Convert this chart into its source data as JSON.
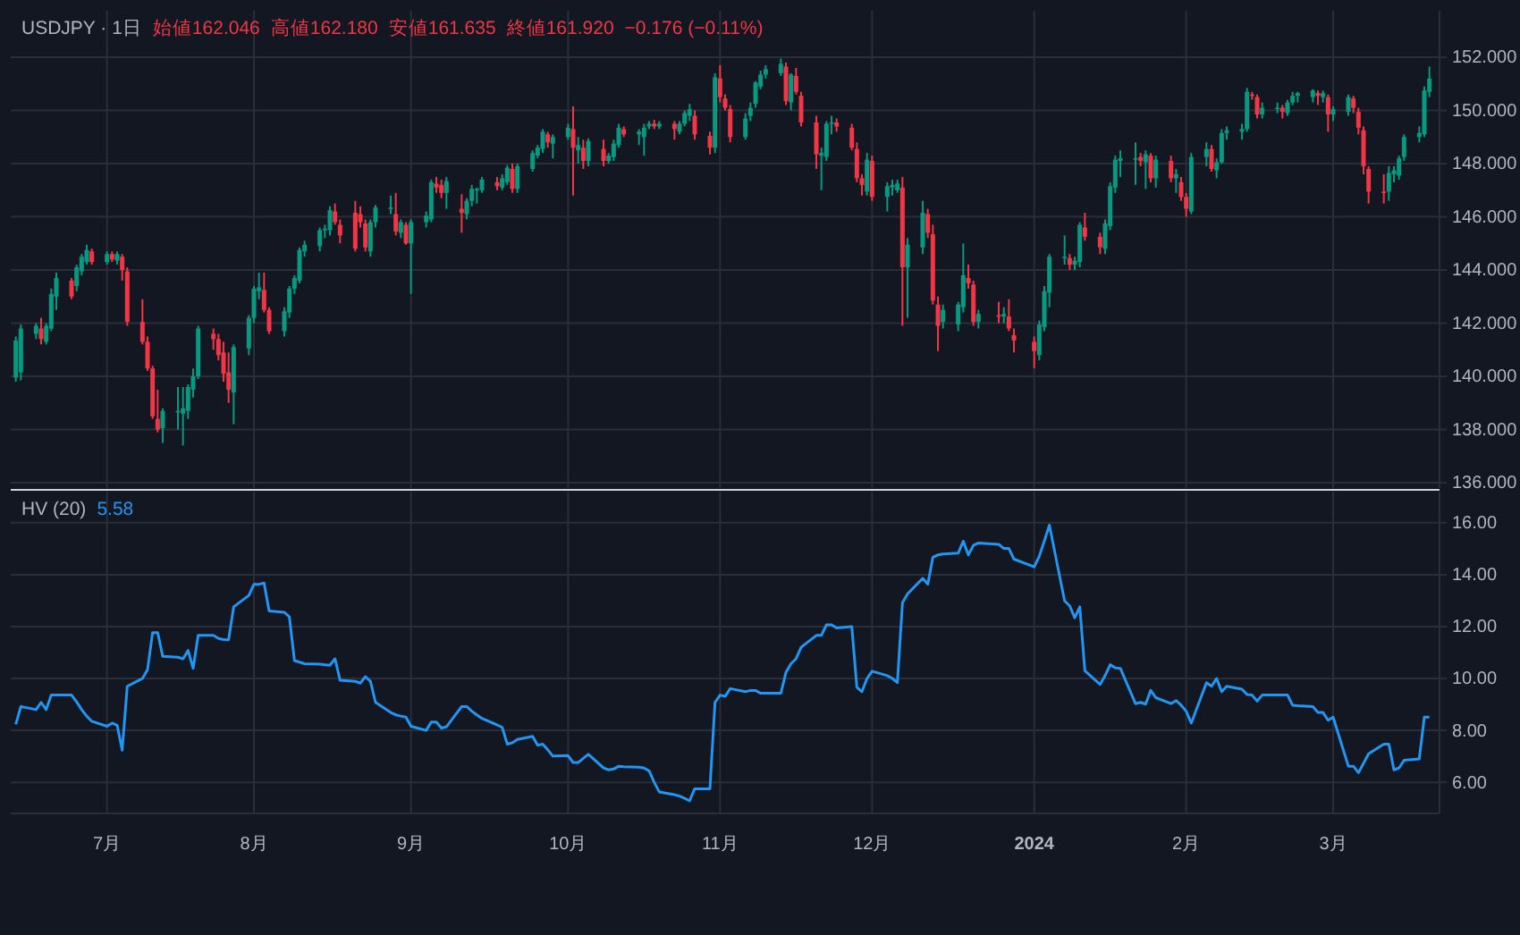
{
  "chart_data": [
    {
      "type": "candlestick",
      "title": "USDJPY · 1日",
      "annotations": [
        "始値162.046",
        "高値162.180",
        "安値161.635",
        "終値161.920",
        "−0.176 (−0.11%)"
      ],
      "x": [
        "2023-06-15",
        "2023-06-16",
        "2023-06-19",
        "2023-06-20",
        "2023-06-21",
        "2023-06-22",
        "2023-06-23",
        "2023-06-26",
        "2023-06-27",
        "2023-06-28",
        "2023-06-29",
        "2023-06-30",
        "2023-07-03",
        "2023-07-04",
        "2023-07-05",
        "2023-07-06",
        "2023-07-07",
        "2023-07-10",
        "2023-07-11",
        "2023-07-12",
        "2023-07-13",
        "2023-07-14",
        "2023-07-17",
        "2023-07-18",
        "2023-07-19",
        "2023-07-20",
        "2023-07-21",
        "2023-07-24",
        "2023-07-25",
        "2023-07-26",
        "2023-07-27",
        "2023-07-28",
        "2023-07-31",
        "2023-08-01",
        "2023-08-02",
        "2023-08-03",
        "2023-08-04",
        "2023-08-07",
        "2023-08-08",
        "2023-08-09",
        "2023-08-10",
        "2023-08-11",
        "2023-08-14",
        "2023-08-15",
        "2023-08-16",
        "2023-08-17",
        "2023-08-18",
        "2023-08-21",
        "2023-08-22",
        "2023-08-23",
        "2023-08-24",
        "2023-08-25",
        "2023-08-28",
        "2023-08-29",
        "2023-08-30",
        "2023-08-31",
        "2023-09-01",
        "2023-09-04",
        "2023-09-05",
        "2023-09-06",
        "2023-09-07",
        "2023-09-08",
        "2023-09-11",
        "2023-09-12",
        "2023-09-13",
        "2023-09-14",
        "2023-09-15",
        "2023-09-18",
        "2023-09-19",
        "2023-09-20",
        "2023-09-21",
        "2023-09-22",
        "2023-09-25",
        "2023-09-26",
        "2023-09-27",
        "2023-09-28",
        "2023-09-29",
        "2023-10-02",
        "2023-10-03",
        "2023-10-04",
        "2023-10-05",
        "2023-10-06",
        "2023-10-09",
        "2023-10-10",
        "2023-10-11",
        "2023-10-12",
        "2023-10-13",
        "2023-10-16",
        "2023-10-17",
        "2023-10-18",
        "2023-10-19",
        "2023-10-20",
        "2023-10-23",
        "2023-10-24",
        "2023-10-25",
        "2023-10-26",
        "2023-10-27",
        "2023-10-30",
        "2023-10-31",
        "2023-11-01",
        "2023-11-02",
        "2023-11-03",
        "2023-11-06",
        "2023-11-07",
        "2023-11-08",
        "2023-11-09",
        "2023-11-10",
        "2023-11-13",
        "2023-11-14",
        "2023-11-15",
        "2023-11-16",
        "2023-11-17",
        "2023-11-20",
        "2023-11-21",
        "2023-11-22",
        "2023-11-23",
        "2023-11-24",
        "2023-11-27",
        "2023-11-28",
        "2023-11-29",
        "2023-11-30",
        "2023-12-01",
        "2023-12-04",
        "2023-12-05",
        "2023-12-06",
        "2023-12-07",
        "2023-12-08",
        "2023-12-11",
        "2023-12-12",
        "2023-12-13",
        "2023-12-14",
        "2023-12-15",
        "2023-12-18",
        "2023-12-19",
        "2023-12-20",
        "2023-12-21",
        "2023-12-22",
        "2023-12-26",
        "2023-12-27",
        "2023-12-28",
        "2023-12-29",
        "2024-01-02",
        "2024-01-03",
        "2024-01-04",
        "2024-01-05",
        "2024-01-08",
        "2024-01-09",
        "2024-01-10",
        "2024-01-11",
        "2024-01-12",
        "2024-01-15",
        "2024-01-16",
        "2024-01-17",
        "2024-01-18",
        "2024-01-19",
        "2024-01-22",
        "2024-01-23",
        "2024-01-24",
        "2024-01-25",
        "2024-01-26",
        "2024-01-29",
        "2024-01-30",
        "2024-01-31",
        "2024-02-01",
        "2024-02-02",
        "2024-02-05",
        "2024-02-06",
        "2024-02-07",
        "2024-02-08",
        "2024-02-09",
        "2024-02-12",
        "2024-02-13",
        "2024-02-14",
        "2024-02-15",
        "2024-02-16",
        "2024-02-19",
        "2024-02-20",
        "2024-02-21",
        "2024-02-22",
        "2024-02-23",
        "2024-02-26",
        "2024-02-27",
        "2024-02-28",
        "2024-02-29",
        "2024-03-01",
        "2024-03-04",
        "2024-03-05",
        "2024-03-06",
        "2024-03-07",
        "2024-03-08",
        "2024-03-11",
        "2024-03-12",
        "2024-03-13",
        "2024-03-14",
        "2024-03-15",
        "2024-03-18",
        "2024-03-19",
        "2024-03-20"
      ],
      "ohlc": [
        [
          139.95,
          141.5,
          139.8,
          141.35
        ],
        [
          140.15,
          141.95,
          139.85,
          141.8
        ],
        [
          141.6,
          142.0,
          141.4,
          141.9
        ],
        [
          141.8,
          142.2,
          141.2,
          141.4
        ],
        [
          141.3,
          142.0,
          141.2,
          141.9
        ],
        [
          141.8,
          143.3,
          141.7,
          143.1
        ],
        [
          143.0,
          143.9,
          142.5,
          143.7
        ],
        [
          143.6,
          143.7,
          142.9,
          143.0
        ],
        [
          143.4,
          144.2,
          143.2,
          144.1
        ],
        [
          143.95,
          144.6,
          143.8,
          144.5
        ],
        [
          144.3,
          144.95,
          144.2,
          144.75
        ],
        [
          144.7,
          144.8,
          144.2,
          144.3
        ],
        [
          144.3,
          144.7,
          144.2,
          144.6
        ],
        [
          144.6,
          144.7,
          144.3,
          144.4
        ],
        [
          144.35,
          144.7,
          144.2,
          144.6
        ],
        [
          144.5,
          144.6,
          143.6,
          144.0
        ],
        [
          143.95,
          144.1,
          141.9,
          142.05
        ],
        [
          142.05,
          142.9,
          141.2,
          141.3
        ],
        [
          141.3,
          141.5,
          140.2,
          140.3
        ],
        [
          140.3,
          140.4,
          138.4,
          138.5
        ],
        [
          138.4,
          139.5,
          137.9,
          138.0
        ],
        [
          138.05,
          138.8,
          137.5,
          138.7
        ],
        [
          138.65,
          139.6,
          138.0,
          138.7
        ],
        [
          138.6,
          139.6,
          137.4,
          138.8
        ],
        [
          138.7,
          139.7,
          138.4,
          139.6
        ],
        [
          139.5,
          140.3,
          139.2,
          140.0
        ],
        [
          140.0,
          141.9,
          139.9,
          141.8
        ],
        [
          141.6,
          141.8,
          141.0,
          141.4
        ],
        [
          141.4,
          141.6,
          140.6,
          140.8
        ],
        [
          140.9,
          141.3,
          139.8,
          140.1
        ],
        [
          140.15,
          140.9,
          139.0,
          139.5
        ],
        [
          139.4,
          141.2,
          138.2,
          141.1
        ],
        [
          141.05,
          142.3,
          140.8,
          142.2
        ],
        [
          142.2,
          143.4,
          142.0,
          143.3
        ],
        [
          143.2,
          143.9,
          142.9,
          143.35
        ],
        [
          143.25,
          143.9,
          142.4,
          142.5
        ],
        [
          142.5,
          142.6,
          141.6,
          141.7
        ],
        [
          141.7,
          142.6,
          141.5,
          142.45
        ],
        [
          142.4,
          143.4,
          142.2,
          143.3
        ],
        [
          143.3,
          143.8,
          143.1,
          143.7
        ],
        [
          143.6,
          144.85,
          143.5,
          144.75
        ],
        [
          144.7,
          145.1,
          144.5,
          144.95
        ],
        [
          144.9,
          145.6,
          144.7,
          145.5
        ],
        [
          145.5,
          145.7,
          145.2,
          145.55
        ],
        [
          145.5,
          146.4,
          145.3,
          146.25
        ],
        [
          146.2,
          146.5,
          145.7,
          145.8
        ],
        [
          145.7,
          145.9,
          145.0,
          145.3
        ],
        [
          146.15,
          146.6,
          144.7,
          144.8
        ],
        [
          146.1,
          146.4,
          145.6,
          145.8
        ],
        [
          145.75,
          145.9,
          144.7,
          144.85
        ],
        [
          144.7,
          145.9,
          144.5,
          145.8
        ],
        [
          145.8,
          146.45,
          145.6,
          146.35
        ],
        [
          146.3,
          146.8,
          146.1,
          146.35
        ],
        [
          146.1,
          146.9,
          145.3,
          145.45
        ],
        [
          145.4,
          145.9,
          145.2,
          145.8
        ],
        [
          145.7,
          145.8,
          144.95,
          145.0
        ],
        [
          145.0,
          145.9,
          143.1,
          145.8
        ],
        [
          145.8,
          146.2,
          145.6,
          146.05
        ],
        [
          145.9,
          147.4,
          145.8,
          147.3
        ],
        [
          147.25,
          147.5,
          146.9,
          147.1
        ],
        [
          147.2,
          147.4,
          146.7,
          146.9
        ],
        [
          146.9,
          147.5,
          146.3,
          147.35
        ],
        [
          146.3,
          146.85,
          145.4,
          146.15
        ],
        [
          146.1,
          146.7,
          145.9,
          146.6
        ],
        [
          146.6,
          147.2,
          146.4,
          147.05
        ],
        [
          147.0,
          147.1,
          146.5,
          147.05
        ],
        [
          147.0,
          147.5,
          146.9,
          147.4
        ],
        [
          147.3,
          147.5,
          147.0,
          147.15
        ],
        [
          147.1,
          147.6,
          147.0,
          147.45
        ],
        [
          147.3,
          147.95,
          147.2,
          147.85
        ],
        [
          147.8,
          148.0,
          146.9,
          147.05
        ],
        [
          147.05,
          148.0,
          146.9,
          147.9
        ],
        [
          147.8,
          148.5,
          147.7,
          148.4
        ],
        [
          148.3,
          148.7,
          148.2,
          148.6
        ],
        [
          148.55,
          149.3,
          148.4,
          149.2
        ],
        [
          149.1,
          149.2,
          148.6,
          148.8
        ],
        [
          148.75,
          149.1,
          148.2,
          149.0
        ],
        [
          149.0,
          149.5,
          148.9,
          149.35
        ],
        [
          149.3,
          150.15,
          146.8,
          148.6
        ],
        [
          148.5,
          149.0,
          148.0,
          148.7
        ],
        [
          148.6,
          148.9,
          147.8,
          148.1
        ],
        [
          148.1,
          148.95,
          147.9,
          148.85
        ],
        [
          148.55,
          148.9,
          147.9,
          148.1
        ],
        [
          148.1,
          148.4,
          148.0,
          148.3
        ],
        [
          148.25,
          148.9,
          148.1,
          148.75
        ],
        [
          148.7,
          149.5,
          148.6,
          149.35
        ],
        [
          149.3,
          149.4,
          149.0,
          149.1
        ],
        [
          149.1,
          149.3,
          148.7,
          149.2
        ],
        [
          149.0,
          149.5,
          148.3,
          149.35
        ],
        [
          149.4,
          149.6,
          149.3,
          149.5
        ],
        [
          149.5,
          149.65,
          149.3,
          149.4
        ],
        [
          149.4,
          149.6,
          149.3,
          149.5
        ],
        [
          149.5,
          149.6,
          148.9,
          149.3
        ],
        [
          149.2,
          149.6,
          149.1,
          149.5
        ],
        [
          149.5,
          150.0,
          149.4,
          149.9
        ],
        [
          149.8,
          150.25,
          149.6,
          150.05
        ],
        [
          149.8,
          150.0,
          148.9,
          149.1
        ],
        [
          149.05,
          149.2,
          148.35,
          148.6
        ],
        [
          148.6,
          151.4,
          148.4,
          151.25
        ],
        [
          151.2,
          151.7,
          150.3,
          150.5
        ],
        [
          150.45,
          150.6,
          150.0,
          150.1
        ],
        [
          150.05,
          150.2,
          148.8,
          149.0
        ],
        [
          149.0,
          149.9,
          148.9,
          149.7
        ],
        [
          149.8,
          150.3,
          149.6,
          150.1
        ],
        [
          150.25,
          151.1,
          150.1,
          151.05
        ],
        [
          150.9,
          151.5,
          150.8,
          151.35
        ],
        [
          151.35,
          151.7,
          151.2,
          151.55
        ],
        [
          151.4,
          151.95,
          151.3,
          151.75
        ],
        [
          151.65,
          151.8,
          150.2,
          150.35
        ],
        [
          150.3,
          151.4,
          150.0,
          151.35
        ],
        [
          151.3,
          151.6,
          150.6,
          150.7
        ],
        [
          150.55,
          150.7,
          149.4,
          149.55
        ],
        [
          149.55,
          149.8,
          147.8,
          148.35
        ],
        [
          148.3,
          148.6,
          147.0,
          148.4
        ],
        [
          148.25,
          149.6,
          148.1,
          149.5
        ],
        [
          149.5,
          149.8,
          149.1,
          149.55
        ],
        [
          149.55,
          149.7,
          149.2,
          149.4
        ],
        [
          149.35,
          149.5,
          148.5,
          148.6
        ],
        [
          148.55,
          148.8,
          147.3,
          147.45
        ],
        [
          147.45,
          147.6,
          146.8,
          147.2
        ],
        [
          146.95,
          148.4,
          146.8,
          148.15
        ],
        [
          148.1,
          148.3,
          146.6,
          146.75
        ],
        [
          146.75,
          147.3,
          146.2,
          147.15
        ],
        [
          147.1,
          147.4,
          146.8,
          147.2
        ],
        [
          147.0,
          147.4,
          146.9,
          147.25
        ],
        [
          147.1,
          147.5,
          141.9,
          144.1
        ],
        [
          144.1,
          145.2,
          142.2,
          144.95
        ],
        [
          144.85,
          146.6,
          144.6,
          146.15
        ],
        [
          146.1,
          146.3,
          145.2,
          145.4
        ],
        [
          145.35,
          145.7,
          142.7,
          142.85
        ],
        [
          142.7,
          143.0,
          140.95,
          141.9
        ],
        [
          142.05,
          142.7,
          141.8,
          142.5
        ],
        [
          141.95,
          142.8,
          141.7,
          142.7
        ],
        [
          142.6,
          145.0,
          142.4,
          143.8
        ],
        [
          143.7,
          144.2,
          143.3,
          143.5
        ],
        [
          143.45,
          143.6,
          141.9,
          142.05
        ],
        [
          142.05,
          142.5,
          141.8,
          142.35
        ],
        [
          142.3,
          142.8,
          142.0,
          142.25
        ],
        [
          142.25,
          142.6,
          142.0,
          142.35
        ],
        [
          142.25,
          142.9,
          141.7,
          141.8
        ],
        [
          141.55,
          141.8,
          140.9,
          141.35
        ],
        [
          141.3,
          141.5,
          140.3,
          140.95
        ],
        [
          140.8,
          142.1,
          140.6,
          141.95
        ],
        [
          141.85,
          143.4,
          141.7,
          143.2
        ],
        [
          143.15,
          144.6,
          142.6,
          144.5
        ],
        [
          144.45,
          145.3,
          144.2,
          144.5
        ],
        [
          144.45,
          144.6,
          144.0,
          144.2
        ],
        [
          144.2,
          144.5,
          144.0,
          144.35
        ],
        [
          144.3,
          145.8,
          144.1,
          145.7
        ],
        [
          145.6,
          146.15,
          145.1,
          145.25
        ],
        [
          145.25,
          145.4,
          144.6,
          144.85
        ],
        [
          144.8,
          145.9,
          144.6,
          145.75
        ],
        [
          145.65,
          147.3,
          145.5,
          147.15
        ],
        [
          147.1,
          148.3,
          146.9,
          148.15
        ],
        [
          148.1,
          148.5,
          147.5,
          148.2
        ],
        [
          148.15,
          148.8,
          147.2,
          148.2
        ],
        [
          148.25,
          148.4,
          147.9,
          148.1
        ],
        [
          148.05,
          148.5,
          147.05,
          148.35
        ],
        [
          148.3,
          148.4,
          147.3,
          147.45
        ],
        [
          147.45,
          148.3,
          147.1,
          148.15
        ],
        [
          148.1,
          148.3,
          147.3,
          147.45
        ],
        [
          147.45,
          147.8,
          146.9,
          147.6
        ],
        [
          147.3,
          147.5,
          146.6,
          146.75
        ],
        [
          146.75,
          146.9,
          146.0,
          146.3
        ],
        [
          146.2,
          148.4,
          146.1,
          148.25
        ],
        [
          148.25,
          148.8,
          147.9,
          148.55
        ],
        [
          148.55,
          148.7,
          147.7,
          147.8
        ],
        [
          147.75,
          148.2,
          147.45,
          148.05
        ],
        [
          148.05,
          149.3,
          148.0,
          149.15
        ],
        [
          149.15,
          149.4,
          148.9,
          149.25
        ],
        [
          149.2,
          149.5,
          148.9,
          149.3
        ],
        [
          149.3,
          150.85,
          149.2,
          150.7
        ],
        [
          150.6,
          150.7,
          150.4,
          150.55
        ],
        [
          150.5,
          150.6,
          149.7,
          149.85
        ],
        [
          149.85,
          150.3,
          149.7,
          150.1
        ],
        [
          150.05,
          150.3,
          149.9,
          150.1
        ],
        [
          150.1,
          150.2,
          149.7,
          149.95
        ],
        [
          149.9,
          150.4,
          149.8,
          150.3
        ],
        [
          150.3,
          150.7,
          150.2,
          150.55
        ],
        [
          150.55,
          150.7,
          150.3,
          150.65
        ],
        [
          150.5,
          150.8,
          150.3,
          150.75
        ],
        [
          150.65,
          150.75,
          150.2,
          150.55
        ],
        [
          150.5,
          150.75,
          150.3,
          150.65
        ],
        [
          150.5,
          150.6,
          149.2,
          149.85
        ],
        [
          149.85,
          150.15,
          149.6,
          150.05
        ],
        [
          149.95,
          150.6,
          149.8,
          150.5
        ],
        [
          150.45,
          150.55,
          149.9,
          150.1
        ],
        [
          149.95,
          150.1,
          149.1,
          149.35
        ],
        [
          149.25,
          149.4,
          147.6,
          147.9
        ],
        [
          147.8,
          147.9,
          146.5,
          146.95
        ],
        [
          146.95,
          147.6,
          146.5,
          146.9
        ],
        [
          146.95,
          147.9,
          146.6,
          147.65
        ],
        [
          147.6,
          147.9,
          147.3,
          147.75
        ],
        [
          147.55,
          148.3,
          147.4,
          148.2
        ],
        [
          148.25,
          149.1,
          148.1,
          149.0
        ],
        [
          149.0,
          149.4,
          148.8,
          149.15
        ],
        [
          149.1,
          150.9,
          149.0,
          150.75
        ],
        [
          150.7,
          151.65,
          150.5,
          151.2
        ]
      ],
      "ylim": [
        135.8,
        153.75
      ],
      "yticks": [
        {
          "value": 136,
          "label": "136.000"
        },
        {
          "value": 138,
          "label": "138.000"
        },
        {
          "value": 140,
          "label": "140.000"
        },
        {
          "value": 142,
          "label": "142.000"
        },
        {
          "value": 144,
          "label": "144.000"
        },
        {
          "value": 146,
          "label": "146.000"
        },
        {
          "value": 148,
          "label": "148.000"
        },
        {
          "value": 150,
          "label": "150.000"
        },
        {
          "value": 152,
          "label": "152.000"
        }
      ],
      "xlim": [
        "2023-06-14",
        "2024-03-22"
      ],
      "xticks": [
        "2023-07-03",
        "2023-08-01",
        "2023-09-01",
        "2023-10-02",
        "2023-11-01",
        "2023-12-01",
        "2024-01-02",
        "2024-02-01",
        "2024-03-01"
      ],
      "tick_labels": "y",
      "grid": true
    },
    {
      "type": "line",
      "title": "HV (20)",
      "annotations": [
        "5.58"
      ],
      "x": [
        "2023-06-15",
        "2023-06-16",
        "2023-06-19",
        "2023-06-20",
        "2023-06-21",
        "2023-06-22",
        "2023-06-23",
        "2023-06-26",
        "2023-06-27",
        "2023-06-28",
        "2023-06-29",
        "2023-06-30",
        "2023-07-03",
        "2023-07-04",
        "2023-07-05",
        "2023-07-06",
        "2023-07-07",
        "2023-07-10",
        "2023-07-11",
        "2023-07-12",
        "2023-07-13",
        "2023-07-14",
        "2023-07-17",
        "2023-07-18",
        "2023-07-19",
        "2023-07-20",
        "2023-07-21",
        "2023-07-24",
        "2023-07-25",
        "2023-07-26",
        "2023-07-27",
        "2023-07-28",
        "2023-07-31",
        "2023-08-01",
        "2023-08-02",
        "2023-08-03",
        "2023-08-04",
        "2023-08-07",
        "2023-08-08",
        "2023-08-09",
        "2023-08-10",
        "2023-08-11",
        "2023-08-14",
        "2023-08-15",
        "2023-08-16",
        "2023-08-17",
        "2023-08-18",
        "2023-08-21",
        "2023-08-22",
        "2023-08-23",
        "2023-08-24",
        "2023-08-25",
        "2023-08-28",
        "2023-08-29",
        "2023-08-30",
        "2023-08-31",
        "2023-09-01",
        "2023-09-04",
        "2023-09-05",
        "2023-09-06",
        "2023-09-07",
        "2023-09-08",
        "2023-09-11",
        "2023-09-12",
        "2023-09-13",
        "2023-09-14",
        "2023-09-15",
        "2023-09-18",
        "2023-09-19",
        "2023-09-20",
        "2023-09-21",
        "2023-09-22",
        "2023-09-25",
        "2023-09-26",
        "2023-09-27",
        "2023-09-28",
        "2023-09-29",
        "2023-10-02",
        "2023-10-03",
        "2023-10-04",
        "2023-10-05",
        "2023-10-06",
        "2023-10-09",
        "2023-10-10",
        "2023-10-11",
        "2023-10-12",
        "2023-10-13",
        "2023-10-16",
        "2023-10-17",
        "2023-10-18",
        "2023-10-19",
        "2023-10-20",
        "2023-10-23",
        "2023-10-24",
        "2023-10-25",
        "2023-10-26",
        "2023-10-27",
        "2023-10-30",
        "2023-10-31",
        "2023-11-01",
        "2023-11-02",
        "2023-11-03",
        "2023-11-06",
        "2023-11-07",
        "2023-11-08",
        "2023-11-09",
        "2023-11-10",
        "2023-11-13",
        "2023-11-14",
        "2023-11-15",
        "2023-11-16",
        "2023-11-17",
        "2023-11-20",
        "2023-11-21",
        "2023-11-22",
        "2023-11-23",
        "2023-11-24",
        "2023-11-27",
        "2023-11-28",
        "2023-11-29",
        "2023-11-30",
        "2023-12-01",
        "2023-12-04",
        "2023-12-05",
        "2023-12-06",
        "2023-12-07",
        "2023-12-08",
        "2023-12-11",
        "2023-12-12",
        "2023-12-13",
        "2023-12-14",
        "2023-12-15",
        "2023-12-18",
        "2023-12-19",
        "2023-12-20",
        "2023-12-21",
        "2023-12-22",
        "2023-12-26",
        "2023-12-27",
        "2023-12-28",
        "2023-12-29",
        "2024-01-02",
        "2024-01-03",
        "2024-01-04",
        "2024-01-05",
        "2024-01-08",
        "2024-01-09",
        "2024-01-10",
        "2024-01-11",
        "2024-01-12",
        "2024-01-15",
        "2024-01-16",
        "2024-01-17",
        "2024-01-18",
        "2024-01-19",
        "2024-01-22",
        "2024-01-23",
        "2024-01-24",
        "2024-01-25",
        "2024-01-26",
        "2024-01-29",
        "2024-01-30",
        "2024-01-31",
        "2024-02-01",
        "2024-02-02",
        "2024-02-05",
        "2024-02-06",
        "2024-02-07",
        "2024-02-08",
        "2024-02-09",
        "2024-02-12",
        "2024-02-13",
        "2024-02-14",
        "2024-02-15",
        "2024-02-16",
        "2024-02-19",
        "2024-02-20",
        "2024-02-21",
        "2024-02-22",
        "2024-02-23",
        "2024-02-26",
        "2024-02-27",
        "2024-02-28",
        "2024-02-29",
        "2024-03-01",
        "2024-03-04",
        "2024-03-05",
        "2024-03-06",
        "2024-03-07",
        "2024-03-08",
        "2024-03-11",
        "2024-03-12",
        "2024-03-13",
        "2024-03-14",
        "2024-03-15",
        "2024-03-18",
        "2024-03-19",
        "2024-03-20"
      ],
      "series": [
        {
          "color": "#2196f3",
          "values": [
            8.23,
            8.92,
            8.8,
            9.08,
            8.8,
            9.36,
            9.36,
            9.36,
            9.1,
            8.8,
            8.55,
            8.35,
            8.16,
            8.28,
            8.2,
            7.24,
            9.7,
            10.0,
            10.34,
            11.77,
            11.77,
            10.85,
            10.82,
            10.76,
            11.08,
            10.39,
            11.66,
            11.66,
            11.54,
            11.5,
            11.49,
            12.76,
            13.2,
            13.63,
            13.63,
            13.68,
            12.6,
            12.55,
            12.37,
            10.69,
            10.63,
            10.57,
            10.55,
            10.53,
            10.51,
            10.76,
            9.93,
            9.89,
            9.82,
            10.07,
            9.89,
            9.08,
            8.69,
            8.6,
            8.55,
            8.51,
            8.16,
            8.0,
            8.32,
            8.32,
            8.09,
            8.14,
            8.92,
            8.92,
            8.74,
            8.6,
            8.46,
            8.21,
            8.12,
            7.47,
            7.52,
            7.65,
            7.77,
            7.43,
            7.47,
            7.25,
            7.01,
            7.03,
            6.76,
            6.76,
            6.92,
            7.08,
            6.55,
            6.48,
            6.51,
            6.62,
            6.6,
            6.58,
            6.55,
            6.44,
            6.0,
            5.63,
            5.52,
            5.47,
            5.38,
            5.29,
            5.75,
            5.75,
            9.08,
            9.36,
            9.31,
            9.61,
            9.49,
            9.54,
            9.54,
            9.43,
            9.43,
            9.43,
            10.23,
            10.57,
            10.76,
            11.2,
            11.66,
            11.66,
            12.07,
            12.07,
            11.95,
            12.0,
            9.66,
            9.49,
            10.0,
            10.28,
            10.11,
            10.0,
            9.84,
            12.92,
            13.26,
            13.86,
            13.63,
            14.67,
            14.76,
            14.8,
            14.83,
            15.29,
            14.76,
            15.13,
            15.22,
            15.17,
            15.01,
            15.01,
            14.6,
            14.3,
            14.71,
            15.3,
            15.91,
            12.99,
            12.8,
            12.34,
            12.76,
            10.3,
            9.77,
            10.11,
            10.53,
            10.41,
            10.39,
            9.03,
            9.08,
            9.01,
            9.54,
            9.26,
            9.03,
            9.15,
            8.97,
            8.74,
            8.28,
            9.84,
            9.7,
            10.0,
            9.49,
            9.7,
            9.59,
            9.38,
            9.36,
            9.13,
            9.36,
            9.36,
            9.36,
            9.36,
            8.97,
            8.95,
            8.92,
            8.69,
            8.69,
            8.39,
            8.51,
            6.62,
            6.62,
            6.37,
            6.73,
            7.1,
            7.47,
            7.47,
            6.48,
            6.55,
            6.85,
            6.9,
            8.51,
            8.51
          ]
        }
      ],
      "ylim": [
        4.8,
        17.2
      ],
      "xlim": [
        "2023-06-14",
        "2024-03-22"
      ],
      "yticks": [
        {
          "value": 6,
          "label": "6.00"
        },
        {
          "value": 8,
          "label": "8.00"
        },
        {
          "value": 10,
          "label": "10.00"
        },
        {
          "value": 12,
          "label": "12.00"
        },
        {
          "value": 14,
          "label": "14.00"
        },
        {
          "value": 16,
          "label": "16.00"
        }
      ],
      "xticks": [
        {
          "value": "2023-07-03",
          "label": "7月"
        },
        {
          "value": "2023-08-01",
          "label": "8月"
        },
        {
          "value": "2023-09-01",
          "label": "9月"
        },
        {
          "value": "2023-10-02",
          "label": "10月"
        },
        {
          "value": "2023-11-01",
          "label": "11月"
        },
        {
          "value": "2023-12-01",
          "label": "12月"
        },
        {
          "value": "2024-01-02",
          "label": "2024"
        },
        {
          "value": "2024-02-01",
          "label": "2月"
        },
        {
          "value": "2024-03-01",
          "label": "3月"
        }
      ],
      "grid": true
    }
  ]
}
